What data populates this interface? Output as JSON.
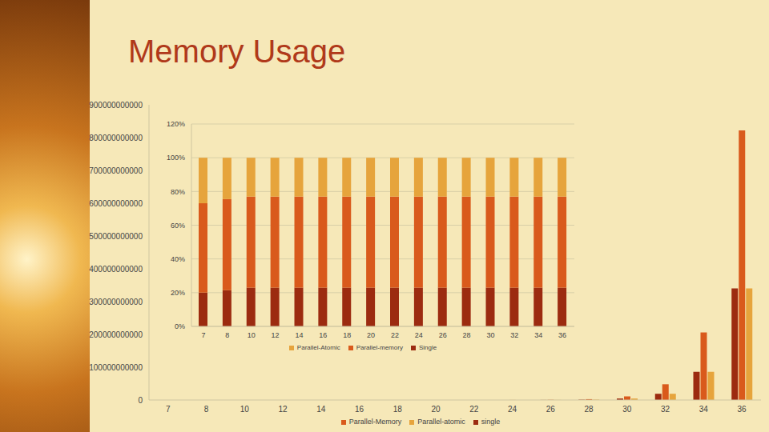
{
  "chart_data": [
    {
      "type": "bar",
      "title": "Memory Usage",
      "categories": [
        "7",
        "8",
        "10",
        "12",
        "14",
        "16",
        "18",
        "20",
        "22",
        "24",
        "26",
        "28",
        "30",
        "32",
        "34",
        "36"
      ],
      "series": [
        {
          "name": "single",
          "color": "#9c2b10",
          "values": [
            1000,
            2000,
            4000,
            17000,
            70000,
            270000,
            1100000,
            4400000,
            18000000,
            70000000,
            280000000,
            1100000000,
            4500000000,
            19000000000,
            86000000000,
            340000000000
          ]
        },
        {
          "name": "Parallel-Memory",
          "color": "#d95a1c",
          "values": [
            2400,
            4800,
            9600,
            41000,
            168000,
            650000,
            2600000,
            10600000,
            43000000,
            168000000,
            670000000,
            2600000000,
            11000000000,
            48000000000,
            206000000000,
            822000000000
          ]
        },
        {
          "name": "Parallel-atomic",
          "color": "#e6a43c",
          "values": [
            1000,
            2000,
            4000,
            17000,
            70000,
            270000,
            1100000,
            4400000,
            18000000,
            70000000,
            280000000,
            1100000000,
            4500000000,
            19000000000,
            86000000000,
            340000000000
          ]
        }
      ],
      "ylim": [
        0,
        900000000000
      ],
      "yticks": [
        0,
        100000000000,
        200000000000,
        300000000000,
        400000000000,
        500000000000,
        600000000000,
        700000000000,
        800000000000,
        900000000000
      ],
      "grid": false,
      "legend": "bottom"
    },
    {
      "type": "bar",
      "stacked": true,
      "categories": [
        "7",
        "8",
        "10",
        "12",
        "14",
        "16",
        "18",
        "20",
        "22",
        "24",
        "26",
        "28",
        "30",
        "32",
        "34",
        "36"
      ],
      "series": [
        {
          "name": "Single",
          "color": "#9c2b10",
          "values": [
            20,
            21.5,
            23,
            23,
            23,
            23,
            23,
            23,
            23,
            23,
            23,
            23,
            23,
            23,
            23,
            23
          ]
        },
        {
          "name": "Parallel-memory",
          "color": "#d95a1c",
          "values": [
            53,
            54,
            54,
            54,
            54,
            54,
            54,
            54,
            54,
            54,
            54,
            54,
            54,
            54,
            54,
            54
          ]
        },
        {
          "name": "Parallel-Atomic",
          "color": "#e6a43c",
          "values": [
            27,
            24.5,
            23,
            23,
            23,
            23,
            23,
            23,
            23,
            23,
            23,
            23,
            23,
            23,
            23,
            23
          ]
        }
      ],
      "ylim": [
        0,
        120
      ],
      "yticks": [
        {
          "value": 0,
          "label": "0%"
        },
        {
          "value": 20,
          "label": "20%"
        },
        {
          "value": 40,
          "label": "40%"
        },
        {
          "value": 60,
          "label": "60%"
        },
        {
          "value": 80,
          "label": "80%"
        },
        {
          "value": 100,
          "label": "100%"
        },
        {
          "value": 120,
          "label": "120%"
        }
      ],
      "grid": true,
      "legend": "bottom"
    }
  ]
}
